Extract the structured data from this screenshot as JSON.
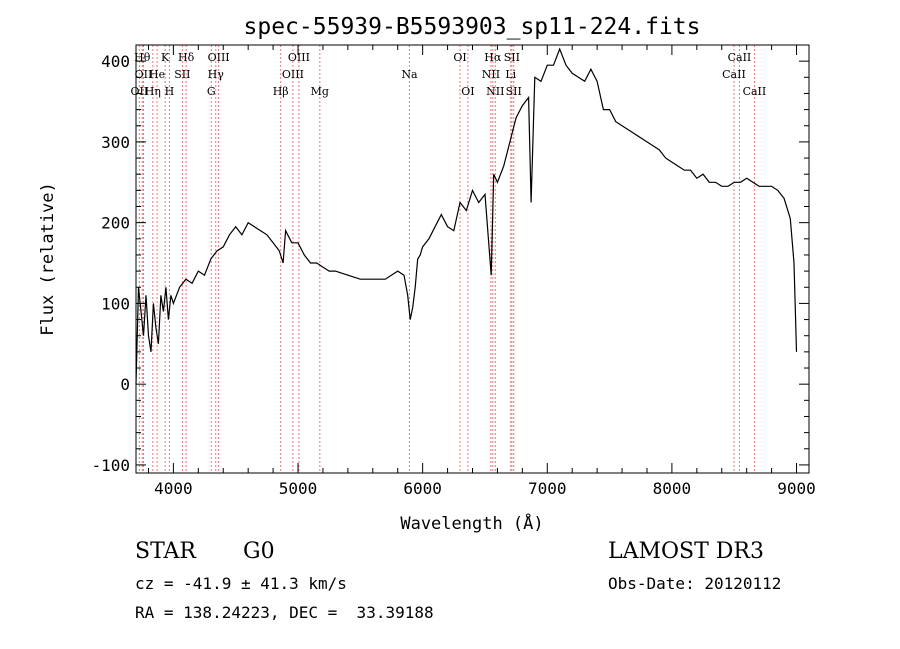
{
  "chart_data": {
    "type": "line",
    "title": "spec-55939-B5593903_sp11-224.fits",
    "xlabel": "Wavelength (Å)",
    "ylabel": "Flux (relative)",
    "xlim": [
      3700,
      9100
    ],
    "ylim": [
      -110,
      420
    ],
    "x_ticks": [
      4000,
      5000,
      6000,
      7000,
      8000,
      9000
    ],
    "y_ticks": [
      -100,
      0,
      100,
      200,
      300,
      400
    ],
    "series": [
      {
        "name": "flux",
        "x": [
          3700,
          3720,
          3740,
          3760,
          3780,
          3800,
          3820,
          3840,
          3860,
          3880,
          3900,
          3920,
          3940,
          3960,
          3980,
          4000,
          4050,
          4100,
          4150,
          4200,
          4250,
          4300,
          4350,
          4400,
          4450,
          4500,
          4550,
          4600,
          4650,
          4700,
          4750,
          4800,
          4850,
          4880,
          4900,
          4950,
          5000,
          5050,
          5100,
          5150,
          5200,
          5250,
          5300,
          5400,
          5500,
          5600,
          5700,
          5800,
          5850,
          5880,
          5900,
          5920,
          5940,
          5960,
          5980,
          6000,
          6050,
          6100,
          6150,
          6200,
          6250,
          6300,
          6350,
          6400,
          6450,
          6500,
          6550,
          6570,
          6600,
          6650,
          6700,
          6750,
          6800,
          6850,
          6870,
          6900,
          6950,
          7000,
          7050,
          7100,
          7150,
          7200,
          7250,
          7300,
          7350,
          7400,
          7450,
          7500,
          7550,
          7600,
          7650,
          7700,
          7750,
          7800,
          7850,
          7900,
          7950,
          8000,
          8050,
          8100,
          8150,
          8200,
          8250,
          8300,
          8350,
          8400,
          8450,
          8500,
          8550,
          8600,
          8650,
          8700,
          8750,
          8800,
          8850,
          8900,
          8950,
          8980,
          9000
        ],
        "y": [
          0,
          120,
          90,
          60,
          110,
          60,
          40,
          100,
          70,
          50,
          110,
          90,
          120,
          80,
          110,
          100,
          120,
          130,
          125,
          140,
          135,
          155,
          165,
          170,
          185,
          195,
          185,
          200,
          195,
          190,
          185,
          175,
          165,
          150,
          190,
          175,
          175,
          160,
          150,
          150,
          145,
          140,
          140,
          135,
          130,
          130,
          130,
          140,
          135,
          110,
          80,
          95,
          120,
          155,
          160,
          170,
          180,
          195,
          210,
          195,
          190,
          225,
          215,
          240,
          225,
          235,
          135,
          260,
          250,
          270,
          300,
          330,
          345,
          355,
          225,
          380,
          375,
          395,
          395,
          415,
          395,
          385,
          380,
          375,
          390,
          375,
          340,
          340,
          325,
          320,
          315,
          310,
          305,
          300,
          295,
          290,
          280,
          275,
          270,
          265,
          265,
          255,
          260,
          250,
          250,
          245,
          245,
          250,
          250,
          255,
          250,
          245,
          245,
          245,
          240,
          230,
          205,
          150,
          40
        ]
      }
    ],
    "lines": [
      {
        "x": 3727,
        "label": "OII",
        "row": 2,
        "color": "#e87878"
      },
      {
        "x": 3750,
        "label": "Hθ",
        "row": 0,
        "color": "#e87878"
      },
      {
        "x": 3760,
        "label": "OII",
        "row": 1,
        "color": "#e87878"
      },
      {
        "x": 3835,
        "label": "Hη",
        "row": 2,
        "color": "#e87878"
      },
      {
        "x": 3869,
        "label": "He",
        "row": 1,
        "color": "#e87878"
      },
      {
        "x": 3934,
        "label": "K",
        "row": 0,
        "color": "#e87878"
      },
      {
        "x": 3968,
        "label": "H",
        "row": 2,
        "color": "#e87878"
      },
      {
        "x": 4072,
        "label": "SII",
        "row": 1,
        "color": "#e87878"
      },
      {
        "x": 4102,
        "label": "Hδ",
        "row": 0,
        "color": "#e87878"
      },
      {
        "x": 4304,
        "label": "G",
        "row": 2,
        "color": "#e87878"
      },
      {
        "x": 4340,
        "label": "Hγ",
        "row": 1,
        "color": "#e87878"
      },
      {
        "x": 4363,
        "label": "OIII",
        "row": 0,
        "color": "#e87878"
      },
      {
        "x": 4861,
        "label": "Hβ",
        "row": 2,
        "color": "#e87878"
      },
      {
        "x": 4959,
        "label": "OIII",
        "row": 1,
        "color": "#e87878"
      },
      {
        "x": 5007,
        "label": "OIII",
        "row": 0,
        "color": "#e87878"
      },
      {
        "x": 5175,
        "label": "Mg",
        "row": 2,
        "color": "#e87878"
      },
      {
        "x": 5894,
        "label": "Na",
        "row": 1,
        "color": "#e87878"
      },
      {
        "x": 6300,
        "label": "OI",
        "row": 0,
        "color": "#e87878"
      },
      {
        "x": 6363,
        "label": "OI",
        "row": 2,
        "color": "#e87878"
      },
      {
        "x": 6548,
        "label": "NII",
        "row": 1,
        "color": "#e87878"
      },
      {
        "x": 6563,
        "label": "Hα",
        "row": 0,
        "color": "#e87878"
      },
      {
        "x": 6583,
        "label": "NII",
        "row": 2,
        "color": "#e87878"
      },
      {
        "x": 6707,
        "label": "Li",
        "row": 1,
        "color": "#e87878"
      },
      {
        "x": 6716,
        "label": "SII",
        "row": 0,
        "color": "#e87878"
      },
      {
        "x": 6731,
        "label": "SII",
        "row": 2,
        "color": "#e87878"
      },
      {
        "x": 8498,
        "label": "CaII",
        "row": 1,
        "color": "#e87878"
      },
      {
        "x": 8542,
        "label": "CaII",
        "row": 0,
        "color": "#e87878"
      },
      {
        "x": 8662,
        "label": "CaII",
        "row": 2,
        "color": "#e87878"
      }
    ]
  },
  "info": {
    "class_label": "STAR",
    "subclass_label": "G0",
    "survey": "LAMOST DR3",
    "cz": "cz = -41.9 ± 41.3 km/s",
    "obs_date": "Obs-Date: 20120112",
    "coords": "RA = 138.24223, DEC =  33.39188"
  }
}
